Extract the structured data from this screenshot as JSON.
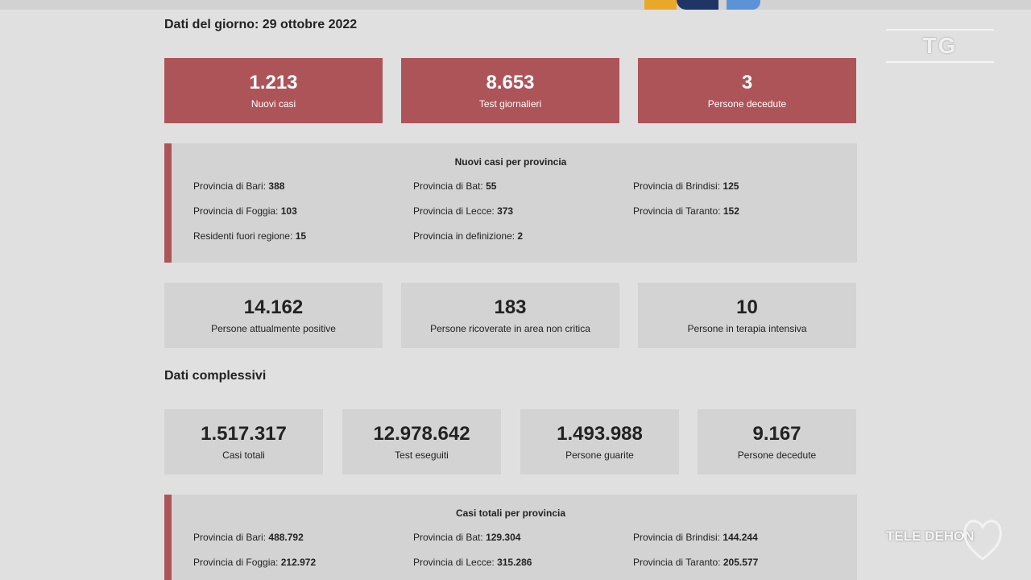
{
  "colors": {
    "accent": "#ad5459",
    "card_grey": "#d3d3d3",
    "background": "#e0e0e0"
  },
  "daily": {
    "title": "Dati del giorno: 29 ottobre 2022",
    "top_cards": [
      {
        "value": "1.213",
        "label": "Nuovi casi"
      },
      {
        "value": "8.653",
        "label": "Test giornalieri"
      },
      {
        "value": "3",
        "label": "Persone decedute"
      }
    ],
    "provinces": {
      "title": "Nuovi casi per provincia",
      "items": [
        {
          "label": "Provincia di Bari:",
          "value": "388"
        },
        {
          "label": "Provincia di Bat:",
          "value": "55"
        },
        {
          "label": "Provincia di Brindisi:",
          "value": "125"
        },
        {
          "label": "Provincia di Foggia:",
          "value": "103"
        },
        {
          "label": "Provincia di Lecce:",
          "value": "373"
        },
        {
          "label": "Provincia di Taranto:",
          "value": "152"
        },
        {
          "label": "Residenti fuori regione:",
          "value": "15"
        },
        {
          "label": "Provincia in definizione:",
          "value": "2"
        }
      ]
    },
    "status_cards": [
      {
        "value": "14.162",
        "label": "Persone attualmente positive"
      },
      {
        "value": "183",
        "label": "Persone ricoverate in area non critica"
      },
      {
        "value": "10",
        "label": "Persone in terapia intensiva"
      }
    ]
  },
  "overall": {
    "title": "Dati complessivi",
    "cards": [
      {
        "value": "1.517.317",
        "label": "Casi totali"
      },
      {
        "value": "12.978.642",
        "label": "Test eseguiti"
      },
      {
        "value": "1.493.988",
        "label": "Persone guarite"
      },
      {
        "value": "9.167",
        "label": "Persone decedute"
      }
    ],
    "provinces": {
      "title": "Casi totali per provincia",
      "items": [
        {
          "label": "Provincia di Bari:",
          "value": "488.792"
        },
        {
          "label": "Provincia di Bat:",
          "value": "129.304"
        },
        {
          "label": "Provincia di Brindisi:",
          "value": "144.244"
        },
        {
          "label": "Provincia di Foggia:",
          "value": "212.972"
        },
        {
          "label": "Provincia di Lecce:",
          "value": "315.286"
        },
        {
          "label": "Provincia di Taranto:",
          "value": "205.577"
        }
      ]
    }
  },
  "overlay": {
    "tg_label": "TG",
    "brand": "TELE DEHON",
    "brand_icon": "heart-outline-icon"
  }
}
